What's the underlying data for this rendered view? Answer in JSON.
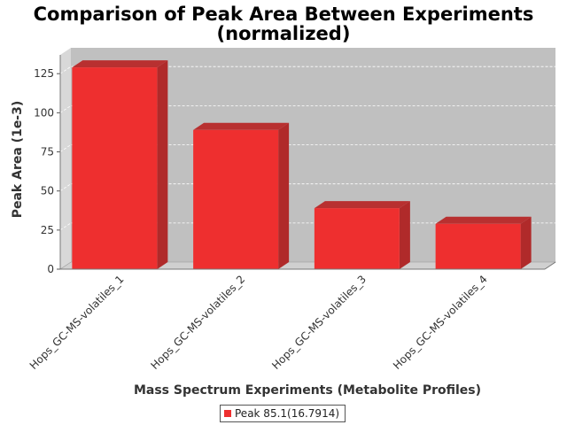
{
  "chart_data": {
    "type": "bar",
    "title": "Comparison of Peak Area Between Experiments",
    "subtitle": "(normalized)",
    "xlabel": "Mass Spectrum Experiments (Metabolite Profiles)",
    "ylabel": "Peak Area (1e-3)",
    "categories": [
      "Hops_GC-MS-volatiles_1",
      "Hops_GC-MS-volatiles_2",
      "Hops_GC-MS-volatiles_3",
      "Hops_GC-MS-volatiles_4"
    ],
    "series": [
      {
        "name": "Peak 85.1(16.7914)",
        "values": [
          129,
          89,
          39,
          29
        ],
        "color": "#ee2f2f"
      }
    ],
    "ylim": [
      0,
      137
    ],
    "yticks": [
      0,
      25,
      50,
      75,
      100,
      125
    ],
    "grid": true,
    "legend": "bottom-center",
    "plot_background": "#c0c0c0"
  }
}
